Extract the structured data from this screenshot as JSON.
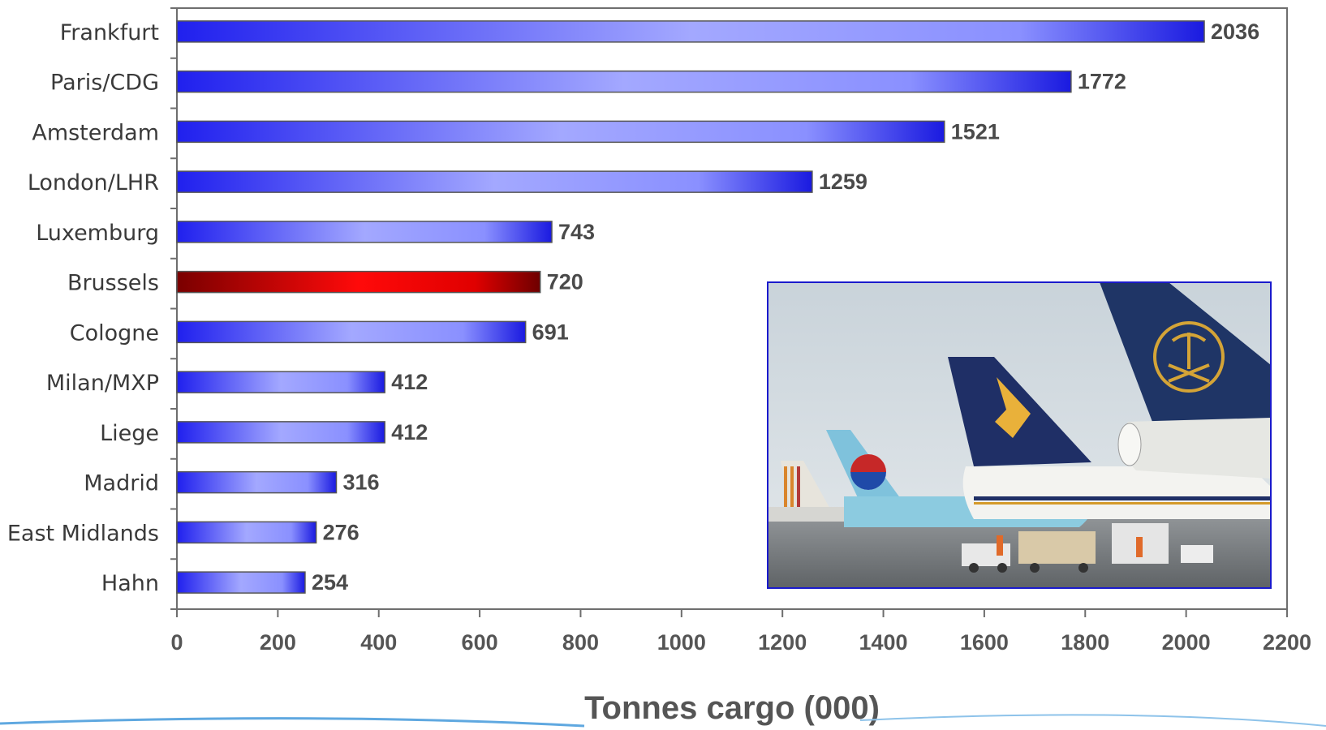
{
  "chart_data": {
    "type": "bar",
    "orientation": "horizontal",
    "categories": [
      "Frankfurt",
      "Paris/CDG",
      "Amsterdam",
      "London/LHR",
      "Luxemburg",
      "Brussels",
      "Cologne",
      "Milan/MXP",
      "Liege",
      "Madrid",
      "East Midlands",
      "Hahn"
    ],
    "values": [
      2036,
      1772,
      1521,
      1259,
      743,
      720,
      691,
      412,
      412,
      316,
      276,
      254
    ],
    "highlight": "Brussels",
    "xlabel": "Tonnes cargo (000)",
    "ylabel": "",
    "xlim": [
      0,
      2200
    ],
    "xticks": [
      0,
      200,
      400,
      600,
      800,
      1000,
      1200,
      1400,
      1600,
      1800,
      2000,
      2200
    ],
    "grid": false,
    "legend": "none",
    "colors": {
      "bar": "#2222ee",
      "bar_light": "#a0a6ff",
      "highlight": "#ff0000",
      "highlight_dark": "#7a0000",
      "axis": "#6e6e6e"
    }
  },
  "inset_photo": {
    "description_icon": "airport-cargo-photo"
  }
}
